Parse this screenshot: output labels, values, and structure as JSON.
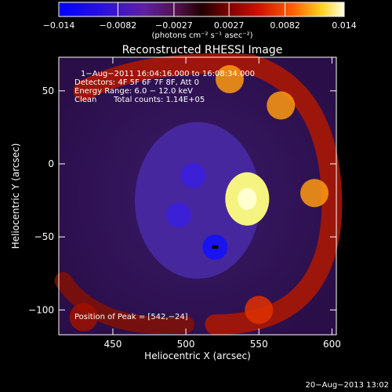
{
  "chart_data": {
    "type": "heatmap",
    "title": "Reconstructed RHESSI Image",
    "xlabel": "Heliocentric X (arcsec)",
    "ylabel": "Heliocentric Y (arcsec)",
    "xlim": [
      413,
      603
    ],
    "ylim": [
      -117,
      73
    ],
    "x_ticks": [
      450,
      500,
      550,
      600
    ],
    "y_ticks": [
      50,
      0,
      -50,
      -100
    ],
    "x_tick_labels": [
      "450",
      "500",
      "550",
      "600"
    ],
    "y_tick_labels": [
      "50",
      "0",
      "−50",
      "−100"
    ],
    "colorbar": {
      "range": [
        -0.014,
        0.014
      ],
      "tick_labels": [
        "−0.014",
        "−0.0082",
        "−0.0027",
        "0.0027",
        "0.0082",
        "0.014"
      ],
      "label": "(photons cm⁻² s⁻¹ asec⁻²)"
    },
    "annotations": [
      "1−Aug−2011 16:04:16.000 to 16:08:34.000",
      "Detectors: 4F 5F 6F 7F 8F, Att 0",
      "Energy Range: 6.0 − 12.0 keV",
      "Clean",
      "Total counts: 1.14E+05"
    ],
    "peak_label": "Position of Peak = [542,−24]",
    "features": [
      {
        "kind": "peak",
        "x": 542,
        "y": -24,
        "value": 0.014
      },
      {
        "kind": "bright",
        "x": 530,
        "y": 58,
        "value": 0.008
      },
      {
        "kind": "bright",
        "x": 565,
        "y": 40,
        "value": 0.009
      },
      {
        "kind": "bright",
        "x": 588,
        "y": -20,
        "value": 0.009
      },
      {
        "kind": "bright",
        "x": 550,
        "y": -100,
        "value": 0.006
      },
      {
        "kind": "bright",
        "x": 430,
        "y": -105,
        "value": 0.004
      },
      {
        "kind": "negative",
        "x": 505,
        "y": -8,
        "value": -0.009
      },
      {
        "kind": "negative",
        "x": 495,
        "y": -35,
        "value": -0.008
      },
      {
        "kind": "negative",
        "x": 520,
        "y": -57,
        "value": -0.012
      }
    ]
  },
  "footer": {
    "date_stamp": "20−Aug−2013 13:02"
  }
}
